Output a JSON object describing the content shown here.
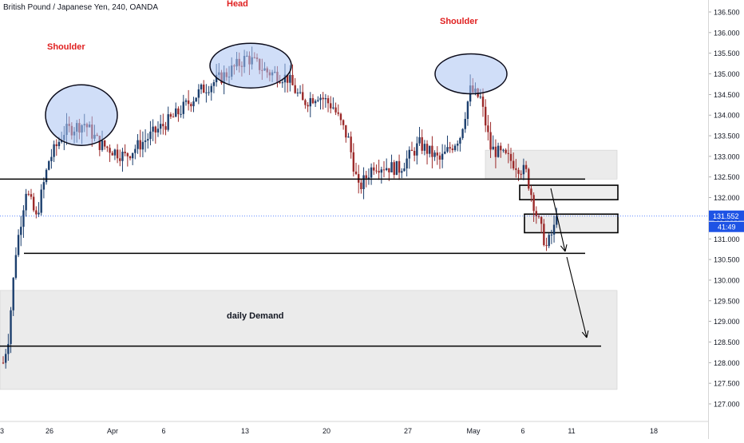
{
  "header": {
    "title": "British Pound / Japanese Yen, 240, OANDA"
  },
  "price_axis": {
    "ticks": [
      "136.500",
      "136.000",
      "135.500",
      "135.000",
      "134.500",
      "134.000",
      "133.500",
      "133.000",
      "132.500",
      "132.000",
      "131.500",
      "131.000",
      "130.500",
      "130.000",
      "129.500",
      "129.000",
      "128.500",
      "128.000",
      "127.500",
      "127.000"
    ],
    "current_price": "131.552",
    "countdown": "41:49",
    "label_color": "#1e53e5"
  },
  "time_axis": {
    "ticks": [
      "3",
      "26",
      "Apr",
      "6",
      "13",
      "20",
      "27",
      "May",
      "6",
      "11",
      "18"
    ]
  },
  "annotations": {
    "shoulder_left": "Shoulder",
    "head": "Head",
    "shoulder_right": "Shoulder",
    "daily_demand": "daily Demand",
    "text_color": "#e02020"
  },
  "colors": {
    "up_candle": "#1c3f6e",
    "down_candle": "#9c2a2a",
    "ellipse_fill": "#a9c3f2",
    "zone_fill": "#ebebeb"
  },
  "chart_data": {
    "type": "candlestick",
    "title": "British Pound / Japanese Yen, 240, OANDA",
    "pattern": "Head and Shoulders",
    "ylim": [
      126.7,
      136.8
    ],
    "current_price": 131.552,
    "horizontal_levels": [
      132.45,
      130.65,
      128.4
    ],
    "zones": [
      {
        "label": "daily Demand",
        "from": 127.35,
        "to": 129.75
      },
      {
        "label": "",
        "from": 132.45,
        "to": 133.15
      },
      {
        "label": "",
        "from": 131.95,
        "to": 132.3
      },
      {
        "label": "",
        "from": 131.15,
        "to": 131.6
      }
    ],
    "shoulder_left_price": 134.0,
    "head_price": 135.2,
    "shoulder_right_price": 135.0,
    "keypoints": [
      [
        0,
        128.0
      ],
      [
        2,
        128.6
      ],
      [
        5,
        130.7
      ],
      [
        9,
        132.2
      ],
      [
        13,
        131.5
      ],
      [
        18,
        132.9
      ],
      [
        24,
        133.6
      ],
      [
        32,
        133.8
      ],
      [
        38,
        133.3
      ],
      [
        48,
        133.0
      ],
      [
        58,
        133.5
      ],
      [
        68,
        134.0
      ],
      [
        78,
        134.6
      ],
      [
        88,
        135.0
      ],
      [
        96,
        135.4
      ],
      [
        104,
        135.05
      ],
      [
        112,
        134.9
      ],
      [
        118,
        134.3
      ],
      [
        124,
        134.5
      ],
      [
        130,
        134.2
      ],
      [
        136,
        133.4
      ],
      [
        140,
        132.2
      ],
      [
        146,
        132.8
      ],
      [
        156,
        132.7
      ],
      [
        164,
        133.3
      ],
      [
        172,
        132.9
      ],
      [
        180,
        133.5
      ],
      [
        184,
        134.6
      ],
      [
        188,
        134.4
      ],
      [
        192,
        133.2
      ],
      [
        200,
        132.9
      ],
      [
        206,
        132.6
      ],
      [
        210,
        131.6
      ],
      [
        214,
        130.8
      ],
      [
        218,
        131.4
      ]
    ]
  }
}
